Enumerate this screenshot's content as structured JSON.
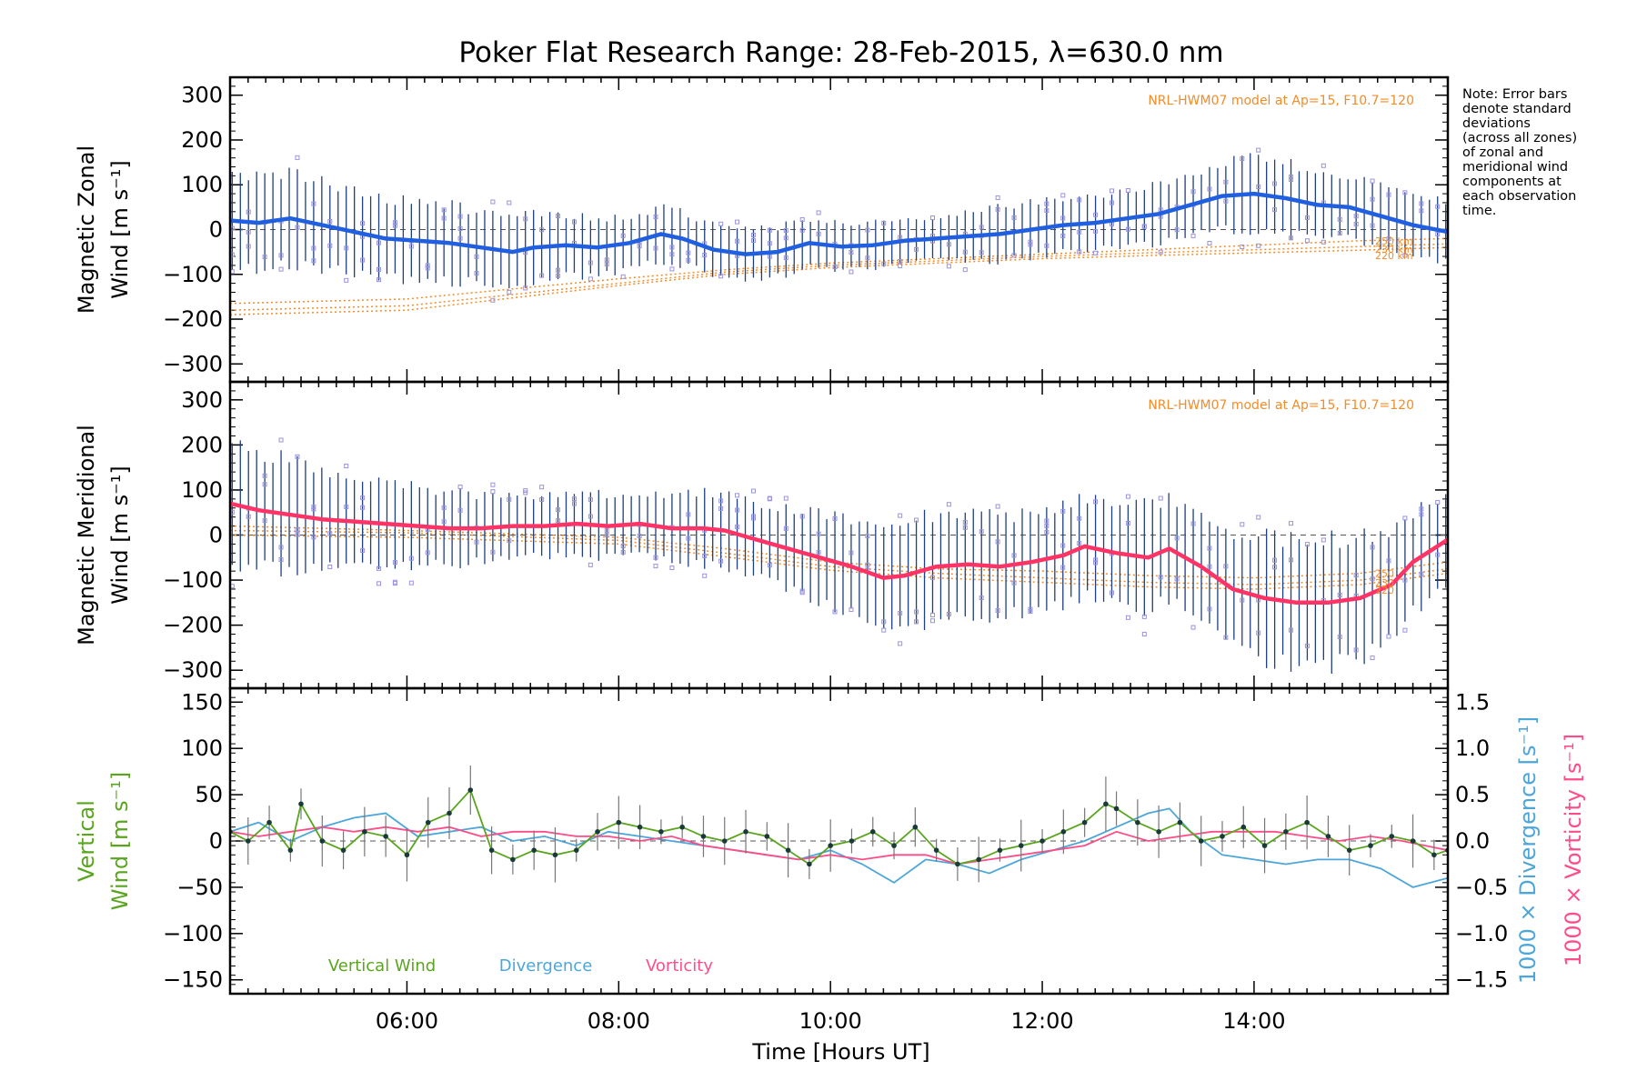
{
  "title": "Poker Flat Research Range: 28-Feb-2015, λ=630.0 nm",
  "note": [
    "Note: Error bars",
    "denote standard",
    "deviations",
    "(across all zones)",
    "of zonal and",
    "meridional wind",
    "components at",
    "each observation",
    "time."
  ],
  "colors": {
    "zonal_mean": "#1f5fe0",
    "meridional_mean": "#ff3366",
    "vertical": "#5aa51e",
    "divergence": "#4da6d9",
    "vorticity": "#ff4d88",
    "model": "#f28c28",
    "zone_markers": "#9a93dd",
    "error_bars": "#1f3f7f"
  },
  "x_axis": {
    "label": "Time [Hours UT]",
    "range_hours": [
      4.33,
      15.83
    ],
    "ticks": [
      6,
      8,
      10,
      12,
      14
    ],
    "tick_labels": [
      "06:00",
      "08:00",
      "10:00",
      "12:00",
      "14:00"
    ]
  },
  "chart_data": [
    {
      "type": "line",
      "name": "zonal",
      "ylabel": [
        "Magnetic Zonal",
        "Wind [m s⁻¹]"
      ],
      "ylim": [
        -340,
        340
      ],
      "yticks": [
        -300,
        -200,
        -100,
        0,
        100,
        200,
        300
      ],
      "ytick_labels": [
        "−300",
        "−200",
        "−100",
        "0",
        "100",
        "200",
        "300"
      ],
      "model_label": "NRL-HWM07 model at Ap=15, F10.7=120",
      "model_alt_labels": [
        "250 km",
        "230 km",
        "220 km"
      ],
      "x": [
        4.33,
        4.6,
        4.9,
        5.2,
        5.5,
        5.8,
        6.1,
        6.4,
        6.7,
        7.0,
        7.2,
        7.5,
        7.8,
        8.1,
        8.4,
        8.6,
        8.9,
        9.2,
        9.5,
        9.8,
        10.1,
        10.4,
        10.7,
        11.0,
        11.3,
        11.6,
        11.9,
        12.2,
        12.5,
        12.8,
        13.1,
        13.4,
        13.7,
        14.0,
        14.3,
        14.6,
        14.9,
        15.2,
        15.5,
        15.83
      ],
      "mean": [
        20,
        15,
        25,
        10,
        -5,
        -20,
        -25,
        -30,
        -40,
        -50,
        -40,
        -35,
        -40,
        -30,
        -10,
        -20,
        -45,
        -55,
        -50,
        -30,
        -38,
        -35,
        -25,
        -20,
        -15,
        -10,
        0,
        10,
        15,
        25,
        35,
        55,
        75,
        80,
        70,
        55,
        50,
        30,
        10,
        -5
      ],
      "spread": [
        110,
        105,
        100,
        95,
        90,
        90,
        85,
        85,
        80,
        80,
        75,
        70,
        65,
        60,
        60,
        60,
        55,
        55,
        55,
        55,
        55,
        50,
        50,
        50,
        55,
        60,
        60,
        60,
        60,
        60,
        65,
        70,
        75,
        80,
        80,
        75,
        70,
        70,
        70,
        70
      ],
      "model": [
        {
          "name": "250 km",
          "x": [
            4.33,
            6,
            8,
            9,
            10,
            11,
            12,
            13,
            14,
            15,
            15.83
          ],
          "y": [
            -165,
            -155,
            -110,
            -90,
            -75,
            -65,
            -55,
            -45,
            -35,
            -25,
            -20
          ]
        },
        {
          "name": "230 km",
          "x": [
            4.33,
            6,
            8,
            9,
            10,
            11,
            12,
            13,
            14,
            15,
            15.83
          ],
          "y": [
            -180,
            -170,
            -120,
            -95,
            -80,
            -70,
            -60,
            -52,
            -45,
            -38,
            -32
          ]
        },
        {
          "name": "220 km",
          "x": [
            4.33,
            6,
            8,
            9,
            10,
            11,
            12,
            13,
            14,
            15,
            15.83
          ],
          "y": [
            -190,
            -180,
            -125,
            -100,
            -85,
            -75,
            -65,
            -58,
            -52,
            -46,
            -40
          ]
        }
      ]
    },
    {
      "type": "line",
      "name": "meridional",
      "ylabel": [
        "Magnetic Meridional",
        "Wind [m s⁻¹]"
      ],
      "ylim": [
        -340,
        340
      ],
      "yticks": [
        -300,
        -200,
        -100,
        0,
        100,
        200,
        300
      ],
      "ytick_labels": [
        "−300",
        "−200",
        "−100",
        "0",
        "100",
        "200",
        "300"
      ],
      "model_label": "NRL-HWM07 model at Ap=15, F10.7=120",
      "model_alt_labels": [
        "250",
        "230",
        "220"
      ],
      "x": [
        4.33,
        4.6,
        4.9,
        5.2,
        5.5,
        5.8,
        6.1,
        6.4,
        6.7,
        7.0,
        7.3,
        7.6,
        7.9,
        8.2,
        8.5,
        8.8,
        9.0,
        9.3,
        9.6,
        9.9,
        10.2,
        10.5,
        10.7,
        11.0,
        11.3,
        11.6,
        11.9,
        12.2,
        12.4,
        12.7,
        13.0,
        13.2,
        13.5,
        13.8,
        14.1,
        14.4,
        14.7,
        15.0,
        15.3,
        15.5,
        15.83
      ],
      "mean": [
        70,
        55,
        45,
        35,
        30,
        25,
        20,
        15,
        15,
        20,
        20,
        25,
        20,
        25,
        15,
        15,
        10,
        -10,
        -30,
        -50,
        -70,
        -95,
        -90,
        -70,
        -65,
        -70,
        -60,
        -45,
        -25,
        -40,
        -50,
        -30,
        -70,
        -120,
        -140,
        -150,
        -150,
        -140,
        -110,
        -60,
        -10
      ],
      "spread": [
        140,
        130,
        120,
        110,
        100,
        90,
        85,
        80,
        75,
        70,
        70,
        65,
        70,
        70,
        75,
        80,
        80,
        85,
        90,
        100,
        110,
        120,
        120,
        115,
        115,
        110,
        110,
        110,
        110,
        110,
        115,
        115,
        120,
        130,
        135,
        140,
        140,
        135,
        120,
        110,
        100
      ],
      "model": [
        {
          "name": "250",
          "x": [
            4.33,
            6,
            8,
            9,
            10,
            11,
            12,
            13,
            14,
            15,
            15.83
          ],
          "y": [
            20,
            10,
            -5,
            -30,
            -60,
            -75,
            -80,
            -90,
            -95,
            -85,
            -60
          ]
        },
        {
          "name": "230",
          "x": [
            4.33,
            6,
            8,
            9,
            10,
            11,
            12,
            13,
            14,
            15,
            15.83
          ],
          "y": [
            10,
            5,
            -12,
            -40,
            -70,
            -85,
            -95,
            -105,
            -110,
            -100,
            -75
          ]
        },
        {
          "name": "220",
          "x": [
            4.33,
            6,
            8,
            9,
            10,
            11,
            12,
            13,
            14,
            15,
            15.83
          ],
          "y": [
            0,
            -5,
            -20,
            -48,
            -78,
            -95,
            -105,
            -115,
            -120,
            -110,
            -85
          ]
        }
      ]
    },
    {
      "type": "line",
      "name": "vertical",
      "ylabel_left": [
        "Vertical",
        "Wind [m s⁻¹]"
      ],
      "ylabel_right": [
        "1000 × Divergence [s⁻¹]",
        "1000 × Vorticity [s⁻¹]"
      ],
      "ylim": [
        -165,
        165
      ],
      "yticks": [
        -150,
        -100,
        -50,
        0,
        50,
        100,
        150
      ],
      "ytick_labels": [
        "−150",
        "−100",
        "−50",
        "0",
        "50",
        "100",
        "150"
      ],
      "y2lim": [
        -1.65,
        1.65
      ],
      "y2ticks": [
        -1.5,
        -1.0,
        -0.5,
        0.0,
        0.5,
        1.0,
        1.5
      ],
      "y2tick_labels": [
        "−1.5",
        "−1.0",
        "−0.5",
        "0.0",
        "0.5",
        "1.0",
        "1.5"
      ],
      "series": [
        {
          "name": "Vertical Wind",
          "x": [
            4.33,
            4.5,
            4.7,
            4.9,
            5.0,
            5.2,
            5.4,
            5.6,
            5.8,
            6.0,
            6.2,
            6.4,
            6.6,
            6.8,
            7.0,
            7.2,
            7.4,
            7.6,
            7.8,
            8.0,
            8.2,
            8.4,
            8.6,
            8.8,
            9.0,
            9.2,
            9.4,
            9.6,
            9.8,
            10.0,
            10.2,
            10.4,
            10.6,
            10.8,
            11.0,
            11.2,
            11.4,
            11.6,
            11.8,
            12.0,
            12.2,
            12.4,
            12.6,
            12.7,
            12.9,
            13.1,
            13.3,
            13.5,
            13.7,
            13.9,
            14.1,
            14.3,
            14.5,
            14.7,
            14.9,
            15.1,
            15.3,
            15.5,
            15.7,
            15.83
          ],
          "values": [
            10,
            0,
            20,
            -10,
            40,
            0,
            -10,
            10,
            5,
            -15,
            20,
            30,
            55,
            -10,
            -20,
            -10,
            -15,
            -10,
            10,
            20,
            15,
            10,
            15,
            5,
            0,
            10,
            5,
            -10,
            -25,
            -5,
            0,
            10,
            -5,
            15,
            -10,
            -25,
            -20,
            -10,
            -5,
            0,
            10,
            20,
            40,
            35,
            20,
            10,
            20,
            0,
            5,
            15,
            -5,
            10,
            20,
            5,
            -10,
            -5,
            5,
            0,
            -15,
            -10
          ]
        },
        {
          "name": "Divergence",
          "axis": "right",
          "x": [
            4.33,
            4.6,
            4.9,
            5.2,
            5.5,
            5.8,
            6.1,
            6.4,
            6.7,
            7.0,
            7.3,
            7.6,
            7.9,
            8.2,
            8.5,
            8.8,
            9.1,
            9.4,
            9.7,
            10.0,
            10.3,
            10.6,
            10.9,
            11.2,
            11.5,
            11.8,
            12.1,
            12.4,
            12.7,
            13.0,
            13.2,
            13.4,
            13.7,
            14.0,
            14.3,
            14.6,
            14.9,
            15.2,
            15.5,
            15.83
          ],
          "values": [
            0.1,
            0.2,
            0.0,
            0.15,
            0.25,
            0.3,
            0.05,
            0.1,
            0.15,
            0.0,
            0.05,
            -0.05,
            0.1,
            0.05,
            0.0,
            -0.05,
            -0.1,
            -0.15,
            -0.2,
            -0.1,
            -0.25,
            -0.45,
            -0.2,
            -0.25,
            -0.35,
            -0.2,
            -0.1,
            0.0,
            0.15,
            0.3,
            0.35,
            0.1,
            -0.15,
            -0.2,
            -0.25,
            -0.2,
            -0.2,
            -0.3,
            -0.5,
            -0.4
          ]
        },
        {
          "name": "Vorticity",
          "axis": "right",
          "x": [
            4.33,
            4.6,
            4.9,
            5.2,
            5.5,
            5.8,
            6.1,
            6.4,
            6.7,
            7.0,
            7.3,
            7.6,
            7.9,
            8.2,
            8.5,
            8.8,
            9.1,
            9.4,
            9.7,
            10.0,
            10.3,
            10.6,
            10.9,
            11.2,
            11.5,
            11.8,
            12.1,
            12.4,
            12.7,
            13.0,
            13.3,
            13.6,
            13.9,
            14.2,
            14.5,
            14.8,
            15.1,
            15.4,
            15.83
          ],
          "values": [
            0.1,
            0.05,
            0.1,
            0.15,
            0.1,
            0.15,
            0.1,
            0.15,
            0.05,
            0.1,
            0.1,
            0.05,
            0.05,
            0.0,
            0.05,
            -0.05,
            -0.1,
            -0.15,
            -0.2,
            -0.15,
            -0.2,
            -0.15,
            -0.15,
            -0.25,
            -0.2,
            -0.15,
            -0.1,
            -0.05,
            0.1,
            0.0,
            0.05,
            0.1,
            0.1,
            0.1,
            0.05,
            0.0,
            0.05,
            0.0,
            -0.1
          ]
        }
      ],
      "legend": [
        "Vertical Wind",
        "Divergence",
        "Vorticity"
      ]
    }
  ]
}
